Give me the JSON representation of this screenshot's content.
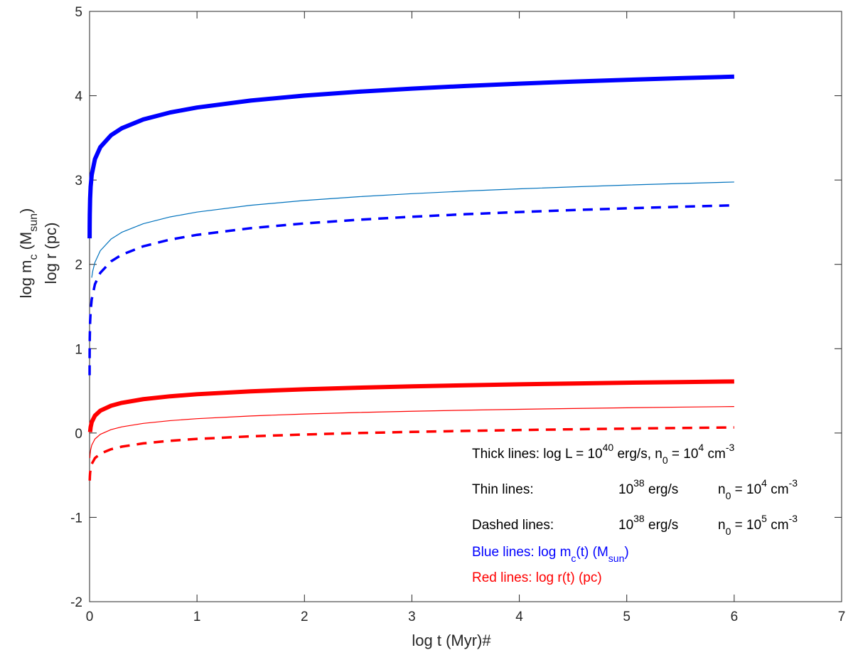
{
  "chart_data": {
    "type": "line",
    "xlabel": "log t (Myr)#",
    "ylabel_line1_pre": "log m",
    "ylabel_line1_sub": "c",
    "ylabel_line1_mid": "  (M",
    "ylabel_line1_sub2": "sun",
    "ylabel_line1_post": ")",
    "ylabel_line2": "log r  (pc)",
    "xlim": [
      0,
      7
    ],
    "ylim": [
      -2,
      5
    ],
    "xticks": [
      0,
      1,
      2,
      3,
      4,
      5,
      6,
      7
    ],
    "yticks": [
      -2,
      -1,
      0,
      1,
      2,
      3,
      4,
      5
    ],
    "colors": {
      "blue": "#0000ff",
      "lightblue": "#0072bd",
      "red": "#ff0000",
      "axis": "#262626"
    },
    "series": [
      {
        "name": "thick-blue",
        "color": "#0000ff",
        "width": 6,
        "dash": "",
        "A": 3.86,
        "B": 0.47,
        "tmin": 0.0005,
        "x": [
          0.0005,
          0.001,
          0.002,
          0.005,
          0.01,
          0.02,
          0.05,
          0.1,
          0.2,
          0.3,
          0.5,
          0.75,
          1,
          1.5,
          2,
          2.5,
          3,
          3.5,
          4,
          4.5,
          5,
          5.5,
          6
        ]
      },
      {
        "name": "thin-blue",
        "color": "#0072bd",
        "width": 1.2,
        "dash": "",
        "A": 2.62,
        "B": 0.458,
        "tmin": 0.02,
        "x": [
          0.02,
          0.03,
          0.05,
          0.1,
          0.2,
          0.3,
          0.5,
          0.75,
          1,
          1.5,
          2,
          2.5,
          3,
          3.5,
          4,
          4.5,
          5,
          5.5,
          6
        ]
      },
      {
        "name": "dashed-blue",
        "color": "#0000ff",
        "width": 3.5,
        "dash": "14,10",
        "A": 2.35,
        "B": 0.45,
        "tmin": 0.0002,
        "x": [
          0.0002,
          0.0005,
          0.001,
          0.002,
          0.005,
          0.01,
          0.02,
          0.05,
          0.1,
          0.2,
          0.3,
          0.5,
          0.75,
          1,
          1.5,
          2,
          2.5,
          3,
          3.5,
          4,
          4.5,
          5,
          5.5,
          6
        ]
      },
      {
        "name": "thick-red",
        "color": "#ff0000",
        "width": 6,
        "dash": "",
        "A": 0.46,
        "B": 0.195,
        "tmin": 0.005,
        "x": [
          0.005,
          0.01,
          0.02,
          0.05,
          0.1,
          0.2,
          0.3,
          0.5,
          0.75,
          1,
          1.5,
          2,
          2.5,
          3,
          3.5,
          4,
          4.5,
          5,
          5.5,
          6
        ]
      },
      {
        "name": "thin-red",
        "color": "#ff0000",
        "width": 1.2,
        "dash": "",
        "A": 0.17,
        "B": 0.185,
        "tmin": 0.003,
        "x": [
          0.003,
          0.005,
          0.01,
          0.02,
          0.05,
          0.1,
          0.2,
          0.3,
          0.5,
          0.75,
          1,
          1.5,
          2,
          2.5,
          3,
          3.5,
          4,
          4.5,
          5,
          5.5,
          6
        ]
      },
      {
        "name": "dashed-red",
        "color": "#ff0000",
        "width": 3.5,
        "dash": "14,10",
        "A": -0.07,
        "B": 0.175,
        "tmin": 0.0015,
        "x": [
          0.0015,
          0.003,
          0.005,
          0.01,
          0.02,
          0.05,
          0.1,
          0.2,
          0.3,
          0.5,
          0.75,
          1,
          1.5,
          2,
          2.5,
          3,
          3.5,
          4,
          4.5,
          5,
          5.5,
          6
        ]
      }
    ],
    "annotations": {
      "thick": {
        "label": "Thick lines: log L = 10",
        "exp": "40",
        "unit": " erg/s,   n",
        "sub": "0",
        "eq": " = 10",
        "exp2": "4",
        "cm": " cm",
        "exp3": "-3"
      },
      "thin": {
        "label": "Thin   lines:",
        "base": "10",
        "exp": "38",
        "unit": " erg/s",
        "n": "n",
        "sub": "0",
        "eq": " = 10",
        "exp2": "4",
        "cm": " cm",
        "exp3": "-3"
      },
      "dashed": {
        "label": "Dashed lines:",
        "base": "10",
        "exp": "38",
        "unit": " erg/s",
        "n": "n",
        "sub": "0",
        "eq": " = 10",
        "exp2": "5",
        "cm": " cm",
        "exp3": "-3"
      },
      "blue": {
        "pre": "Blue lines: log m",
        "sub": "c",
        "mid": "(t)   (M",
        "sub2": "sun",
        "post": ")"
      },
      "red": {
        "text": "Red lines: log r(t)  (pc)"
      }
    }
  }
}
